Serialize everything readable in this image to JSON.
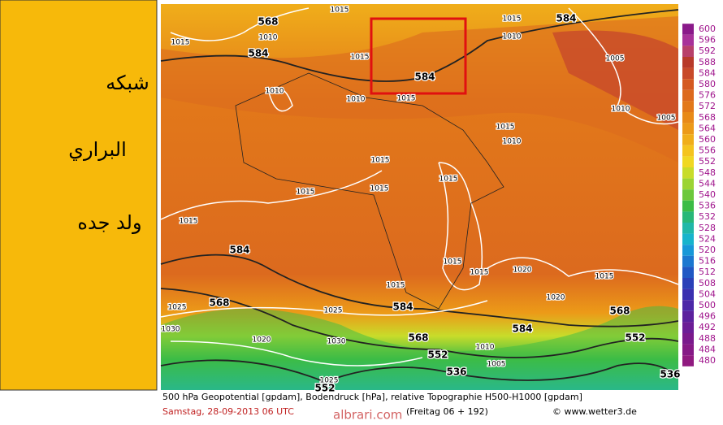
{
  "sidebar": {
    "lines": [
      "شبكه",
      "البراري",
      "ولد جده"
    ]
  },
  "legend": {
    "items": [
      {
        "label": "600",
        "color": "#8a1a8a"
      },
      {
        "label": "596",
        "color": "#a8329a"
      },
      {
        "label": "592",
        "color": "#b8406a"
      },
      {
        "label": "588",
        "color": "#b83a2a"
      },
      {
        "label": "584",
        "color": "#c84a2a"
      },
      {
        "label": "580",
        "color": "#d45a22"
      },
      {
        "label": "576",
        "color": "#dc6a1e"
      },
      {
        "label": "572",
        "color": "#e2781a"
      },
      {
        "label": "568",
        "color": "#e88a18"
      },
      {
        "label": "564",
        "color": "#ec9a18"
      },
      {
        "label": "560",
        "color": "#f0ae1a"
      },
      {
        "label": "556",
        "color": "#f4c41e"
      },
      {
        "label": "552",
        "color": "#f0d822"
      },
      {
        "label": "548",
        "color": "#c8dc2a"
      },
      {
        "label": "544",
        "color": "#9cd434"
      },
      {
        "label": "540",
        "color": "#6cc83c"
      },
      {
        "label": "536",
        "color": "#3cbc46"
      },
      {
        "label": "532",
        "color": "#28b878"
      },
      {
        "label": "528",
        "color": "#20b8a8"
      },
      {
        "label": "524",
        "color": "#18b4cc"
      },
      {
        "label": "520",
        "color": "#1898d8"
      },
      {
        "label": "516",
        "color": "#1c78d0"
      },
      {
        "label": "512",
        "color": "#2058c4"
      },
      {
        "label": "508",
        "color": "#2a40b8"
      },
      {
        "label": "504",
        "color": "#3a30b0"
      },
      {
        "label": "500",
        "color": "#4c28a8"
      },
      {
        "label": "496",
        "color": "#5c229e"
      },
      {
        "label": "492",
        "color": "#6c1e96"
      },
      {
        "label": "488",
        "color": "#7a1a8c"
      },
      {
        "label": "484",
        "color": "#861a86"
      },
      {
        "label": "480",
        "color": "#901a80"
      }
    ]
  },
  "contour_labels": [
    "568",
    "584",
    "1010",
    "1015",
    "1015",
    "1010",
    "1010",
    "1015",
    "584",
    "1015",
    "1015",
    "1010",
    "584",
    "1005",
    "1010",
    "1005",
    "1015",
    "1010",
    "1015",
    "1015",
    "1015",
    "1015",
    "1015",
    "584",
    "1015",
    "1015",
    "1020",
    "1015",
    "1015",
    "1020",
    "584",
    "568",
    "1025",
    "1025",
    "1030",
    "568",
    "1020",
    "1030",
    "552",
    "584",
    "568",
    "552",
    "1010",
    "1005",
    "536",
    "536",
    "1025",
    "552"
  ],
  "footer": {
    "line1": "500 hPa Geopotential [gpdam], Bodendruck [hPa], relative Topographie H500-H1000 [gpdam]",
    "date": "Samstag, 28-09-2013  06 UTC",
    "run": "(Freitag 06 + 192)",
    "source": "© www.wetter3.de",
    "watermark": "albrari.com"
  }
}
